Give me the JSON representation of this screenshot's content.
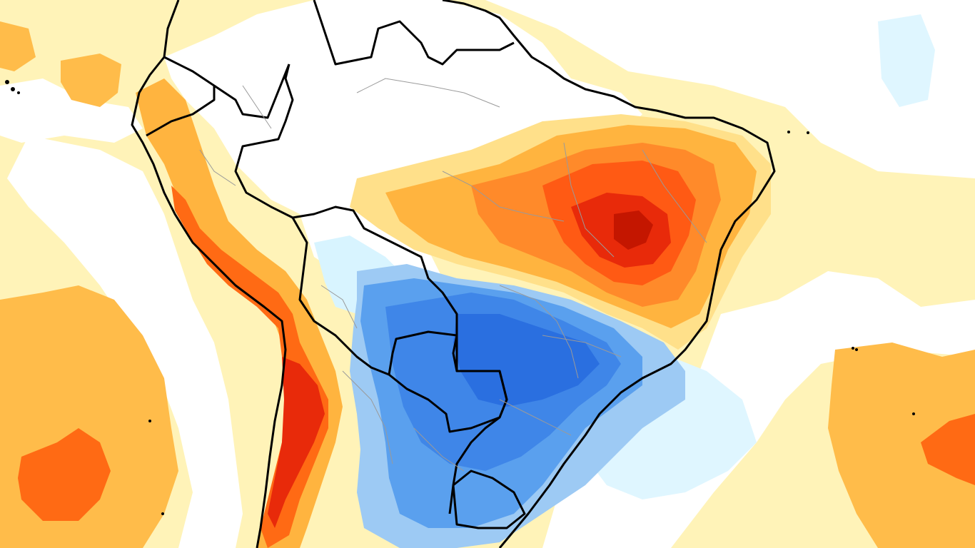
{
  "map": {
    "type": "temperature-anomaly-map",
    "region": "South America",
    "visible_text": [],
    "palette": {
      "background": "#ffffff",
      "cold_strong": "#1c5fdc",
      "cold": "#2f7be6",
      "cold_mid": "#5aa0ee",
      "cold_light": "#9dcaf4",
      "cold_faint": "#d8f4ff",
      "warm_faint": "#fff6c4",
      "warm_light": "#ffe08a",
      "warm": "#ffb43f",
      "warm_mid": "#ff8a2a",
      "hot": "#ff5a14",
      "hot_strong": "#e82a0a",
      "hot_max": "#c41600",
      "country_border": "#000000",
      "state_border": "#9a9a9a"
    },
    "regions": [
      {
        "id": "amazon-neutral",
        "category": "neutral"
      },
      {
        "id": "northeast-brazil-warm",
        "category": "hot"
      },
      {
        "id": "central-south-brazil-cold",
        "category": "cold"
      },
      {
        "id": "andes-warm-strip",
        "category": "hot"
      },
      {
        "id": "pacific-warm-patch",
        "category": "warm"
      },
      {
        "id": "atlantic-warm-patch",
        "category": "warm"
      }
    ]
  }
}
